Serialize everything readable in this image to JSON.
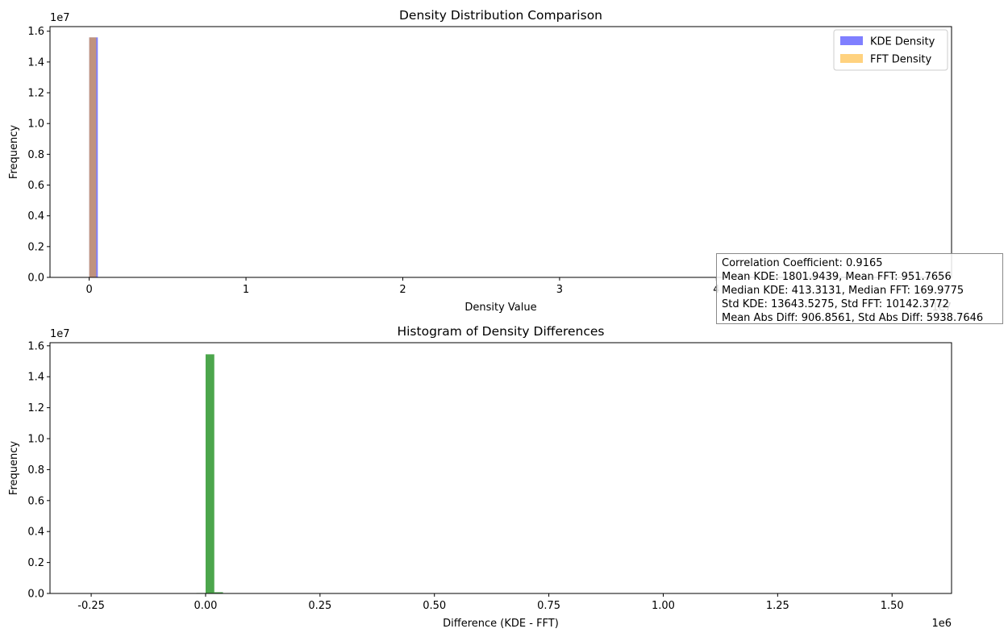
{
  "chart_data": [
    {
      "type": "bar",
      "title": "Density Distribution Comparison",
      "xlabel": "Density Value",
      "ylabel": "Frequency",
      "x_scale_label": "1e7",
      "y_scale_label": "1e7",
      "xlim": [
        -0.25,
        5.5
      ],
      "ylim": [
        0,
        1.63
      ],
      "xticks": [
        0,
        1,
        2,
        3,
        4
      ],
      "yticks": [
        0.0,
        0.2,
        0.4,
        0.6,
        0.8,
        1.0,
        1.2,
        1.4,
        1.6
      ],
      "legend_position": "top-right",
      "series": [
        {
          "name": "KDE Density",
          "color": "#0000ff",
          "alpha": 0.5,
          "bins": [
            {
              "x0": 0.0,
              "x1": 0.055,
              "count": 1.56
            }
          ]
        },
        {
          "name": "FFT Density",
          "color": "#ffa500",
          "alpha": 0.5,
          "bins": [
            {
              "x0": 0.0,
              "x1": 0.045,
              "count": 1.56
            }
          ]
        }
      ]
    },
    {
      "type": "bar",
      "title": "Histogram of Density Differences",
      "xlabel": "Difference (KDE - FFT)",
      "ylabel": "Frequency",
      "x_scale_label": "1e6",
      "y_scale_label": "1e7",
      "xlim": [
        -0.34,
        1.63
      ],
      "ylim": [
        0,
        1.62
      ],
      "xticks": [
        -0.25,
        0.0,
        0.25,
        0.5,
        0.75,
        1.0,
        1.25,
        1.5
      ],
      "yticks": [
        0.0,
        0.2,
        0.4,
        0.6,
        0.8,
        1.0,
        1.2,
        1.4,
        1.6
      ],
      "series": [
        {
          "name": "",
          "color": "#008000",
          "alpha": 0.7,
          "bins": [
            {
              "x0": -0.02,
              "x1": 0.0,
              "count": 0.003
            },
            {
              "x0": 0.0,
              "x1": 0.019,
              "count": 1.545
            },
            {
              "x0": 0.019,
              "x1": 0.038,
              "count": 0.008
            },
            {
              "x0": 0.038,
              "x1": 0.057,
              "count": 0.002
            }
          ]
        }
      ]
    }
  ],
  "stats": {
    "lines": [
      "Correlation Coefficient: 0.9165",
      "Mean KDE: 1801.9439, Mean FFT: 951.7656",
      "Median KDE: 413.3131, Median FFT: 169.9775",
      "Std KDE: 13643.5275, Std FFT: 10142.3772",
      "Mean Abs Diff: 906.8561, Std Abs Diff: 5938.7646"
    ]
  }
}
